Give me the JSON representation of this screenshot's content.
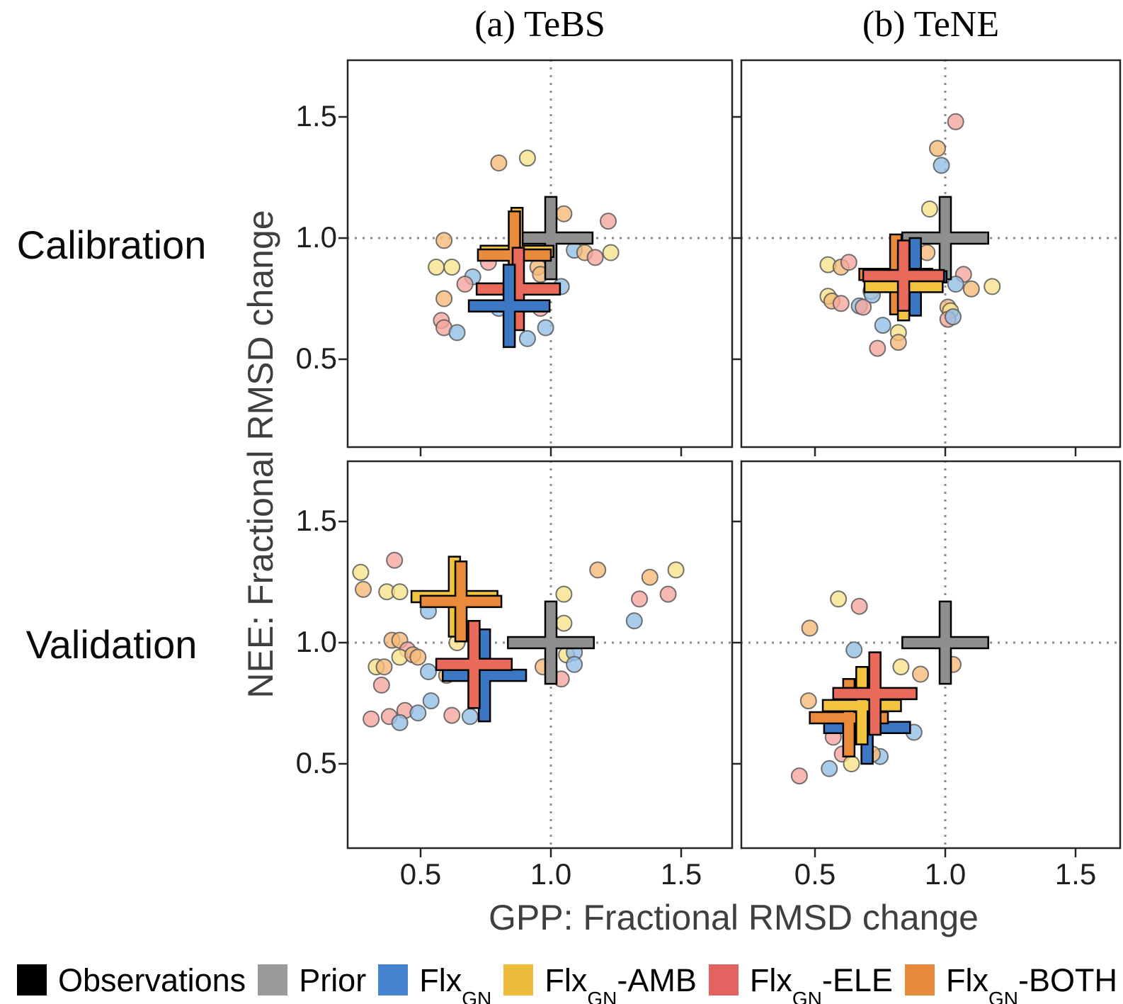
{
  "titles": {
    "col_a": "(a) TeBS",
    "col_b": "(b) TeNE"
  },
  "row_labels": {
    "top": "Calibration",
    "bottom": "Validation"
  },
  "axis_labels": {
    "x": "GPP: Fractional RMSD change",
    "y": "NEE: Fractional RMSD change"
  },
  "colors": {
    "cross": {
      "Prior": "#8f8f8f",
      "GN": "#3b77c2",
      "AMB": "#f2c43d",
      "ELE": "#e9695a",
      "BOTH": "#e98b3b"
    },
    "scatter": {
      "GN": "#94bfe5",
      "AMB": "#f8e289",
      "ELE": "#f5a69d",
      "BOTH": "#f5ba79"
    },
    "cross_outline": "#000000",
    "scatter_outline": "#5a5a5a",
    "ref_line": "#8c8c8c",
    "spine": "#262626"
  },
  "legend": {
    "items": [
      {
        "name": "observations",
        "pre": "Observations",
        "sub": "",
        "post": "",
        "color": "#000000"
      },
      {
        "name": "prior",
        "pre": "Prior",
        "sub": "",
        "post": "",
        "color": "#9a9a9a"
      },
      {
        "name": "flxgn",
        "pre": "Flx",
        "sub": "GN",
        "post": "",
        "color": "#4684d0"
      },
      {
        "name": "flxgn-amb",
        "pre": "Flx",
        "sub": "GN",
        "post": "-AMB",
        "color": "#eebc3b"
      },
      {
        "name": "flxgn-ele",
        "pre": "Flx",
        "sub": "GN",
        "post": "-ELE",
        "color": "#e2635f"
      },
      {
        "name": "flxgn-both",
        "pre": "Flx",
        "sub": "GN",
        "post": "-BOTH",
        "color": "#e78a3e"
      }
    ]
  },
  "chart_data": {
    "type": "scatter",
    "title": "",
    "xlabel": "GPP: Fractional RMSD change",
    "ylabel": "NEE: Fractional RMSD change",
    "xlim": [
      0.2,
      1.69
    ],
    "ylim": [
      0.14,
      1.74
    ],
    "xticks": [
      "0.5",
      "1.0",
      "1.5"
    ],
    "yticks": [
      "1.5",
      "1.0",
      "0.5"
    ],
    "xtick_values": [
      0.5,
      1.0,
      1.5
    ],
    "ytick_values": [
      1.5,
      1.0,
      0.5
    ],
    "grid": false,
    "ref_lines": {
      "x": 1.0,
      "y": 1.0,
      "style": "dotted"
    },
    "legend_position": "bottom",
    "series_note": "crosses are mean markers per experiment; circles are individual sites; hx/hy are half arm lengths in data units",
    "panels": [
      {
        "id": "calibration-tebs",
        "row": "Calibration",
        "col": "TeBS",
        "crosses": [
          {
            "c": "Prior",
            "x": 1.0,
            "y": 1.0,
            "hx": 0.16,
            "hy": 0.17
          },
          {
            "c": "AMB",
            "x": 0.87,
            "y": 0.945,
            "hx": 0.14,
            "hy": 0.18
          },
          {
            "c": "BOTH",
            "x": 0.86,
            "y": 0.93,
            "hx": 0.14,
            "hy": 0.18
          },
          {
            "c": "ELE",
            "x": 0.875,
            "y": 0.79,
            "hx": 0.16,
            "hy": 0.17
          },
          {
            "c": "GN",
            "x": 0.84,
            "y": 0.72,
            "hx": 0.155,
            "hy": 0.17
          }
        ],
        "points": [
          [
            "BOTH",
            0.8,
            1.31
          ],
          [
            "AMB",
            0.91,
            1.33
          ],
          [
            "BOTH",
            1.05,
            1.1
          ],
          [
            "ELE",
            1.22,
            1.07
          ],
          [
            "BOTH",
            0.59,
            0.99
          ],
          [
            "AMB",
            0.56,
            0.88
          ],
          [
            "AMB",
            0.62,
            0.88
          ],
          [
            "ELE",
            0.76,
            0.9
          ],
          [
            "GN",
            0.7,
            0.84
          ],
          [
            "ELE",
            0.67,
            0.81
          ],
          [
            "GN",
            1.09,
            0.95
          ],
          [
            "BOTH",
            1.13,
            0.94
          ],
          [
            "ELE",
            1.17,
            0.92
          ],
          [
            "AMB",
            1.23,
            0.94
          ],
          [
            "BOTH",
            0.95,
            0.88
          ],
          [
            "BOTH",
            0.96,
            0.85
          ],
          [
            "BOTH",
            0.59,
            0.75
          ],
          [
            "ELE",
            0.58,
            0.66
          ],
          [
            "ELE",
            0.59,
            0.63
          ],
          [
            "GN",
            0.64,
            0.61
          ],
          [
            "GN",
            0.8,
            0.71
          ],
          [
            "ELE",
            0.96,
            0.71
          ],
          [
            "GN",
            0.98,
            0.63
          ],
          [
            "GN",
            0.91,
            0.585
          ],
          [
            "GN",
            1.04,
            0.8
          ]
        ]
      },
      {
        "id": "calibration-tene",
        "row": "Calibration",
        "col": "TeNE",
        "crosses": [
          {
            "c": "Prior",
            "x": 1.0,
            "y": 1.0,
            "hx": 0.165,
            "hy": 0.17
          },
          {
            "c": "GN",
            "x": 0.885,
            "y": 0.84,
            "hx": 0.12,
            "hy": 0.16
          },
          {
            "c": "BOTH",
            "x": 0.81,
            "y": 0.85,
            "hx": 0.14,
            "hy": 0.165
          },
          {
            "c": "AMB",
            "x": 0.84,
            "y": 0.8,
            "hx": 0.15,
            "hy": 0.14
          },
          {
            "c": "ELE",
            "x": 0.84,
            "y": 0.845,
            "hx": 0.155,
            "hy": 0.145
          }
        ],
        "points": [
          [
            "ELE",
            1.04,
            1.48
          ],
          [
            "BOTH",
            0.97,
            1.37
          ],
          [
            "GN",
            0.985,
            1.3
          ],
          [
            "AMB",
            0.94,
            1.12
          ],
          [
            "BOTH",
            0.93,
            0.94
          ],
          [
            "AMB",
            0.55,
            0.89
          ],
          [
            "BOTH",
            0.6,
            0.88
          ],
          [
            "ELE",
            0.63,
            0.9
          ],
          [
            "AMB",
            0.55,
            0.76
          ],
          [
            "BOTH",
            0.565,
            0.74
          ],
          [
            "ELE",
            0.6,
            0.73
          ],
          [
            "GN",
            0.67,
            0.72
          ],
          [
            "ELE",
            0.685,
            0.715
          ],
          [
            "AMB",
            0.715,
            0.78
          ],
          [
            "GN",
            0.72,
            0.765
          ],
          [
            "ELE",
            1.07,
            0.85
          ],
          [
            "GN",
            1.04,
            0.81
          ],
          [
            "BOTH",
            1.1,
            0.79
          ],
          [
            "AMB",
            1.18,
            0.8
          ],
          [
            "BOTH",
            1.01,
            0.715
          ],
          [
            "AMB",
            1.02,
            0.7
          ],
          [
            "ELE",
            1.01,
            0.665
          ],
          [
            "GN",
            1.03,
            0.675
          ],
          [
            "GN",
            0.76,
            0.64
          ],
          [
            "AMB",
            0.82,
            0.61
          ],
          [
            "BOTH",
            0.82,
            0.57
          ],
          [
            "ELE",
            0.74,
            0.545
          ]
        ]
      },
      {
        "id": "validation-tebs",
        "row": "Validation",
        "col": "TeBS",
        "crosses": [
          {
            "c": "Prior",
            "x": 1.0,
            "y": 1.0,
            "hx": 0.165,
            "hy": 0.17
          },
          {
            "c": "AMB",
            "x": 0.63,
            "y": 1.19,
            "hx": 0.165,
            "hy": 0.165
          },
          {
            "c": "BOTH",
            "x": 0.655,
            "y": 1.17,
            "hx": 0.155,
            "hy": 0.165
          },
          {
            "c": "GN",
            "x": 0.745,
            "y": 0.865,
            "hx": 0.16,
            "hy": 0.19
          },
          {
            "c": "ELE",
            "x": 0.705,
            "y": 0.91,
            "hx": 0.145,
            "hy": 0.18
          }
        ],
        "points": [
          [
            "ELE",
            0.4,
            1.34
          ],
          [
            "AMB",
            0.27,
            1.29
          ],
          [
            "BOTH",
            0.28,
            1.22
          ],
          [
            "AMB",
            0.37,
            1.21
          ],
          [
            "AMB",
            0.42,
            1.21
          ],
          [
            "GN",
            0.53,
            1.13
          ],
          [
            "BOTH",
            1.18,
            1.3
          ],
          [
            "BOTH",
            1.38,
            1.27
          ],
          [
            "AMB",
            1.48,
            1.3
          ],
          [
            "ELE",
            1.45,
            1.2
          ],
          [
            "ELE",
            1.34,
            1.18
          ],
          [
            "GN",
            1.32,
            1.09
          ],
          [
            "AMB",
            1.05,
            1.2
          ],
          [
            "AMB",
            1.05,
            1.08
          ],
          [
            "AMB",
            1.06,
            0.95
          ],
          [
            "GN",
            1.09,
            0.96
          ],
          [
            "GN",
            1.09,
            0.91
          ],
          [
            "BOTH",
            0.97,
            0.9
          ],
          [
            "ELE",
            1.04,
            0.85
          ],
          [
            "BOTH",
            0.39,
            1.01
          ],
          [
            "BOTH",
            0.42,
            1.01
          ],
          [
            "ELE",
            0.45,
            0.97
          ],
          [
            "AMB",
            0.42,
            0.94
          ],
          [
            "BOTH",
            0.47,
            0.95
          ],
          [
            "BOTH",
            0.49,
            0.94
          ],
          [
            "AMB",
            0.33,
            0.9
          ],
          [
            "BOTH",
            0.36,
            0.9
          ],
          [
            "AMB",
            0.64,
            1.0
          ],
          [
            "GN",
            0.53,
            0.88
          ],
          [
            "BOTH",
            0.6,
            0.865
          ],
          [
            "ELE",
            0.35,
            0.825
          ],
          [
            "GN",
            0.54,
            0.76
          ],
          [
            "ELE",
            0.44,
            0.72
          ],
          [
            "GN",
            0.49,
            0.71
          ],
          [
            "ELE",
            0.38,
            0.695
          ],
          [
            "GN",
            0.42,
            0.67
          ],
          [
            "ELE",
            0.31,
            0.685
          ],
          [
            "ELE",
            0.62,
            0.7
          ],
          [
            "GN",
            0.69,
            0.695
          ]
        ]
      },
      {
        "id": "validation-tene",
        "row": "Validation",
        "col": "TeNE",
        "crosses": [
          {
            "c": "Prior",
            "x": 1.0,
            "y": 1.0,
            "hx": 0.165,
            "hy": 0.17
          },
          {
            "c": "GN",
            "x": 0.7,
            "y": 0.65,
            "hx": 0.165,
            "hy": 0.15
          },
          {
            "c": "BOTH",
            "x": 0.63,
            "y": 0.69,
            "hx": 0.15,
            "hy": 0.16
          },
          {
            "c": "AMB",
            "x": 0.68,
            "y": 0.74,
            "hx": 0.15,
            "hy": 0.16
          },
          {
            "c": "ELE",
            "x": 0.73,
            "y": 0.79,
            "hx": 0.16,
            "hy": 0.17
          }
        ],
        "points": [
          [
            "AMB",
            0.59,
            1.18
          ],
          [
            "ELE",
            0.67,
            1.15
          ],
          [
            "BOTH",
            0.48,
            1.06
          ],
          [
            "GN",
            0.65,
            0.97
          ],
          [
            "AMB",
            0.83,
            0.9
          ],
          [
            "BOTH",
            0.905,
            0.87
          ],
          [
            "BOTH",
            1.03,
            0.91
          ],
          [
            "BOTH",
            0.475,
            0.76
          ],
          [
            "ELE",
            0.57,
            0.61
          ],
          [
            "ELE",
            0.605,
            0.54
          ],
          [
            "GN",
            0.88,
            0.63
          ],
          [
            "GN",
            0.75,
            0.53
          ],
          [
            "BOTH",
            0.72,
            0.54
          ],
          [
            "AMB",
            0.64,
            0.5
          ],
          [
            "GN",
            0.555,
            0.48
          ],
          [
            "ELE",
            0.44,
            0.45
          ]
        ]
      }
    ]
  }
}
